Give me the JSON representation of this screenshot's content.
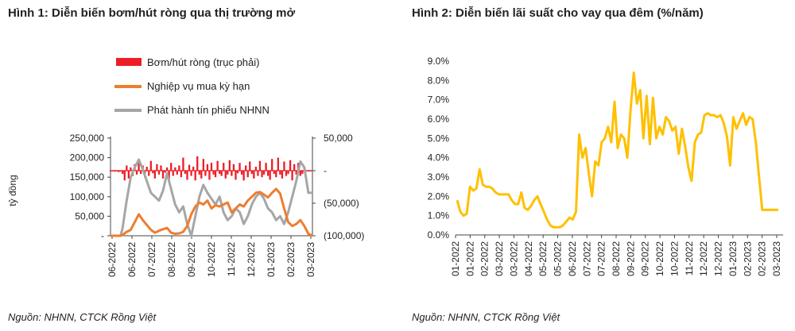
{
  "figure1": {
    "title": "Hình 1: Diễn biến bơm/hút ròng qua thị trường mở",
    "source": "Nguồn: NHNN, CTCK Rồng Việt",
    "chart_data": {
      "type": "line",
      "ylabel": "tỷ đồng",
      "left_axis": {
        "ylim": [
          0,
          250000
        ],
        "tick_labels": [
          "250,000",
          "200,000",
          "150,000",
          "100,000",
          "50,000",
          "-"
        ]
      },
      "right_axis": {
        "ylim": [
          -100000,
          50000
        ],
        "tick_labels": [
          "50,000",
          "-",
          "(50,000)",
          "(100,000)"
        ]
      },
      "x_tick_labels": [
        "06-2022",
        "06-2022",
        "07-2022",
        "08-2022",
        "09-2022",
        "10-2022",
        "11-2022",
        "12-2022",
        "01-2023",
        "02-2023",
        "03-2023"
      ],
      "colors": {
        "net": "#ee1c25",
        "repo": "#ed7d31",
        "bills": "#a6a6a6"
      },
      "series": [
        {
          "name": "Bơm/hút ròng (trục phải)",
          "axis": "right",
          "kind": "bar",
          "x": [
            0,
            1,
            2,
            3,
            4,
            5,
            6,
            7,
            8,
            9,
            10,
            11,
            12,
            13,
            14,
            15,
            16,
            17,
            18,
            19,
            20,
            21,
            22,
            23,
            24,
            25,
            26,
            27,
            28,
            29,
            30,
            31,
            32,
            33,
            34,
            35,
            36,
            37,
            38,
            39,
            40,
            41,
            42,
            43,
            44,
            45,
            46,
            47,
            48,
            49,
            50,
            51,
            52,
            53,
            54,
            55,
            56,
            57,
            58,
            59,
            60,
            61,
            62,
            63,
            64,
            65,
            66,
            67,
            68,
            69,
            70,
            71,
            72,
            73,
            74,
            75,
            76,
            77,
            78,
            79,
            80,
            81,
            82,
            83,
            84,
            85,
            86,
            87,
            88,
            89,
            90,
            91,
            92,
            93,
            94,
            95,
            96,
            97,
            98,
            99
          ],
          "values": [
            0,
            0,
            -1500,
            -1000,
            -2000,
            -1500,
            -5000,
            -15000,
            8000,
            -12000,
            5000,
            -8000,
            10000,
            -6000,
            12000,
            -5000,
            8000,
            -10000,
            6000,
            -8000,
            15000,
            -4000,
            -12000,
            10000,
            -6000,
            8000,
            -12000,
            -3000,
            5000,
            -15000,
            12000,
            -8000,
            5000,
            -6000,
            8000,
            -10000,
            20000,
            -5000,
            -14000,
            9000,
            -8000,
            6000,
            -15000,
            22000,
            -6000,
            -12000,
            18000,
            -8000,
            10000,
            -14000,
            12000,
            -6000,
            -10000,
            15000,
            -5000,
            -8000,
            12000,
            -12000,
            -6000,
            16000,
            -8000,
            10000,
            -14000,
            -4000,
            12000,
            -6000,
            -15000,
            8000,
            -10000,
            14000,
            -5000,
            -12000,
            6000,
            -8000,
            15000,
            -10000,
            -6000,
            12000,
            -8000,
            -14000,
            18000,
            -5000,
            -10000,
            20000,
            -6000,
            -12000,
            14000,
            -8000,
            -5000,
            16000,
            -15000,
            10000,
            -6000,
            12000,
            -8000,
            -5000,
            0,
            0,
            0,
            0
          ],
          "x_range": [
            0,
            100
          ]
        },
        {
          "name": "Nghiệp vụ mua kỳ hạn",
          "axis": "left",
          "x": [
            0,
            3,
            5,
            6,
            8,
            10,
            12,
            14,
            16,
            20,
            22,
            25,
            28,
            30,
            32,
            34,
            36,
            38,
            40,
            42,
            44,
            46,
            48,
            50,
            52,
            54,
            56,
            58,
            60,
            62,
            64,
            66,
            68,
            70,
            72,
            74,
            76,
            78,
            80,
            82,
            84,
            86,
            88,
            90,
            92,
            94,
            96,
            98,
            100
          ],
          "values": [
            0,
            0,
            0,
            2000,
            10000,
            15000,
            35000,
            55000,
            40000,
            15000,
            8000,
            15000,
            20000,
            8000,
            5000,
            6000,
            10000,
            25000,
            55000,
            75000,
            85000,
            80000,
            90000,
            70000,
            78000,
            75000,
            80000,
            85000,
            60000,
            70000,
            80000,
            75000,
            90000,
            100000,
            110000,
            112000,
            105000,
            98000,
            110000,
            120000,
            108000,
            70000,
            35000,
            25000,
            30000,
            40000,
            25000,
            5000,
            0
          ]
        },
        {
          "name": "Phát hành tín phiếu NHNN",
          "axis": "left",
          "x": [
            0,
            3,
            5,
            6,
            8,
            10,
            12,
            14,
            16,
            18,
            20,
            22,
            24,
            26,
            28,
            30,
            32,
            34,
            36,
            38,
            40,
            42,
            44,
            46,
            48,
            50,
            52,
            54,
            56,
            58,
            60,
            62,
            64,
            66,
            68,
            70,
            72,
            74,
            76,
            78,
            80,
            82,
            84,
            86,
            88,
            90,
            92,
            94,
            96,
            98,
            100
          ],
          "values": [
            0,
            0,
            0,
            20000,
            90000,
            150000,
            175000,
            195000,
            170000,
            140000,
            110000,
            100000,
            90000,
            115000,
            160000,
            120000,
            80000,
            60000,
            75000,
            30000,
            0,
            50000,
            100000,
            130000,
            110000,
            95000,
            80000,
            100000,
            60000,
            40000,
            50000,
            70000,
            60000,
            30000,
            50000,
            80000,
            100000,
            110000,
            95000,
            70000,
            60000,
            40000,
            50000,
            30000,
            60000,
            100000,
            140000,
            190000,
            175000,
            110000,
            110000
          ]
        }
      ]
    }
  },
  "figure2": {
    "title": "Hình 2: Diễn biến lãi suất cho vay qua đêm (%/năm)",
    "source": "Nguồn: NHNN, CTCK Rồng Việt",
    "chart_data": {
      "type": "line",
      "ylim": [
        0,
        9
      ],
      "y_tick_labels": [
        "9.0%",
        "8.0%",
        "7.0%",
        "6.0%",
        "5.0%",
        "4.0%",
        "3.0%",
        "2.0%",
        "1.0%",
        "0.0%"
      ],
      "x_tick_labels": [
        "01-2022",
        "01-2022",
        "02-2022",
        "03-2022",
        "03-2022",
        "04-2022",
        "05-2022",
        "05-2022",
        "06-2022",
        "07-2022",
        "07-2022",
        "08-2022",
        "09-2022",
        "09-2022",
        "10-2022",
        "10-2022",
        "11-2022",
        "12-2022",
        "12-2022",
        "01-2023",
        "02-2023",
        "02-2023",
        "03-2023"
      ],
      "color": "#ffc000",
      "series": [
        {
          "name": "Lãi suất cho vay qua đêm",
          "x": [
            0,
            1,
            2,
            3,
            4,
            5,
            6,
            7,
            8,
            9,
            10,
            11,
            12,
            13,
            14,
            15,
            16,
            17,
            18,
            19,
            20,
            21,
            22,
            23,
            24,
            25,
            26,
            27,
            28,
            29,
            30,
            31,
            32,
            33,
            34,
            35,
            36,
            37,
            38,
            39,
            40,
            41,
            42,
            43,
            44,
            45,
            46,
            47,
            48,
            49,
            50,
            51,
            52,
            53,
            54,
            55,
            56,
            57,
            58,
            59,
            60,
            61,
            62,
            63,
            64,
            65,
            66,
            67,
            68,
            69,
            70,
            71,
            72,
            73,
            74,
            75,
            76,
            77,
            78,
            79,
            80,
            81,
            82,
            83,
            84,
            85,
            86,
            87,
            88,
            89,
            90,
            91,
            92,
            93,
            94,
            95,
            96,
            97,
            98,
            99,
            100
          ],
          "values": [
            1.8,
            1.2,
            1.0,
            1.1,
            2.5,
            2.3,
            2.4,
            3.4,
            2.6,
            2.5,
            2.5,
            2.4,
            2.2,
            2.1,
            2.1,
            2.1,
            2.1,
            1.8,
            1.6,
            1.6,
            2.2,
            1.4,
            1.3,
            1.5,
            1.8,
            2.0,
            1.6,
            1.2,
            0.8,
            0.5,
            0.4,
            0.4,
            0.4,
            0.5,
            0.7,
            0.9,
            0.8,
            1.2,
            5.2,
            4.0,
            4.5,
            3.2,
            2.0,
            3.8,
            3.6,
            4.8,
            5.0,
            5.6,
            4.8,
            6.9,
            4.5,
            5.2,
            5.0,
            4.0,
            6.5,
            8.4,
            6.8,
            7.5,
            5.0,
            7.2,
            4.7,
            7.1,
            5.0,
            5.6,
            5.2,
            6.1,
            5.9,
            5.4,
            5.6,
            4.2,
            5.5,
            4.6,
            3.5,
            2.8,
            4.8,
            5.2,
            5.3,
            6.2,
            6.3,
            6.2,
            6.2,
            6.1,
            6.2,
            5.8,
            5.1,
            3.6,
            6.1,
            5.5,
            5.9,
            6.3,
            5.7,
            6.1,
            6.0,
            4.8,
            3.0,
            1.3,
            1.3,
            1.3,
            1.3,
            1.3,
            1.3
          ]
        }
      ]
    }
  }
}
